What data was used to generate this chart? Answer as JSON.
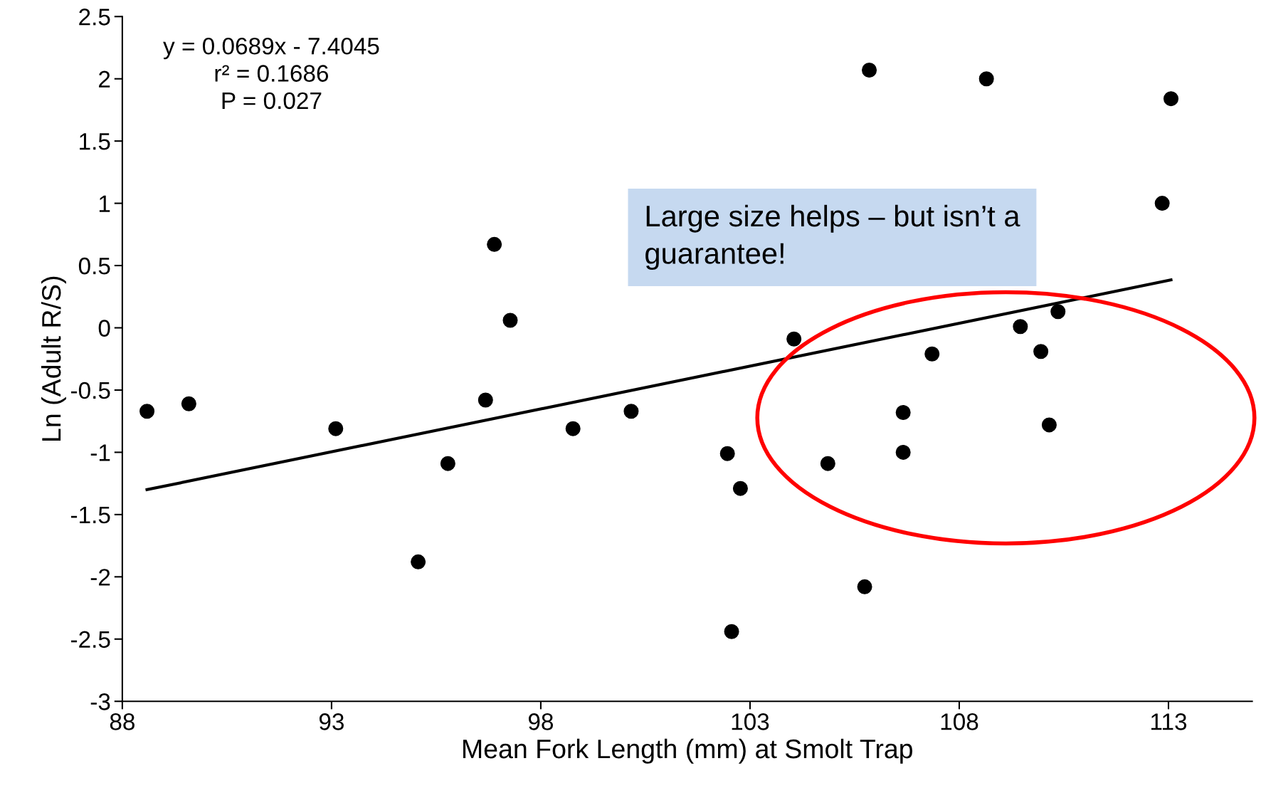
{
  "chart_data": {
    "type": "scatter",
    "xlabel": "Mean Fork Length (mm) at Smolt Trap",
    "ylabel": "Ln (Adult R/S)",
    "xlim": [
      88,
      115
    ],
    "xticks": [
      88,
      93,
      98,
      103,
      108,
      113
    ],
    "ylim": [
      -3,
      2.5
    ],
    "yticks": [
      -3,
      -2.5,
      -2,
      -1.5,
      -1,
      -0.5,
      0,
      0.5,
      1,
      1.5,
      2,
      2.5
    ],
    "grid": false,
    "series": [
      {
        "marker": "circle",
        "color": "#000000",
        "x": [
          88.59,
          89.59,
          93.1,
          95.07,
          95.78,
          96.68,
          96.89,
          97.27,
          98.77,
          100.16,
          102.46,
          102.77,
          102.56,
          104.05,
          104.86,
          105.74,
          105.85,
          106.66,
          106.66,
          107.35,
          108.65,
          109.46,
          109.95,
          110.15,
          110.36,
          112.85,
          113.06
        ],
        "values": [
          -0.67,
          -0.61,
          -0.81,
          -1.88,
          -1.09,
          -0.58,
          0.67,
          0.06,
          -0.81,
          -0.67,
          -1.01,
          -1.29,
          -2.44,
          -0.09,
          -1.09,
          -2.08,
          2.07,
          -0.68,
          -1.0,
          -0.21,
          2.0,
          0.01,
          -0.19,
          -0.78,
          0.13,
          1.0,
          1.84
        ]
      },
      {
        "type": "line",
        "marker": "none",
        "color": "#000000",
        "x": [
          88.59,
          113.06
        ],
        "values": [
          -1.3,
          0.385
        ]
      }
    ],
    "annotations": [
      "y = 0.0689x - 7.4045\nr² = 0.1686\nP = 0.027",
      "Large size helps – but isn’t a\nguarantee!"
    ]
  }
}
